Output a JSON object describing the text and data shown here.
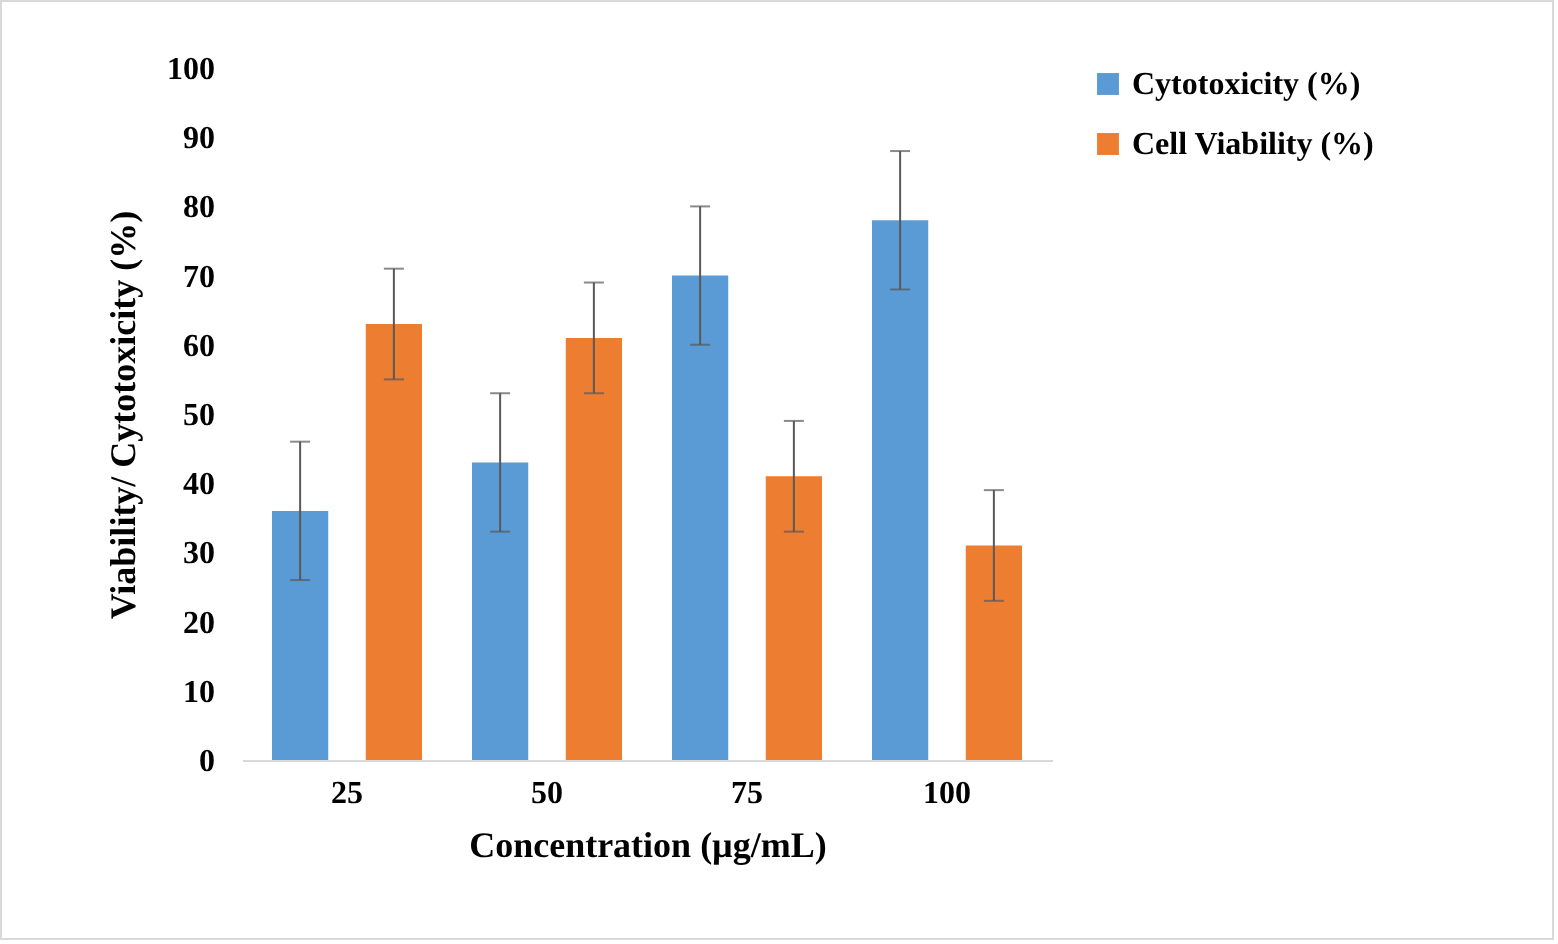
{
  "chart_data": {
    "type": "bar",
    "xlabel": "Concentration (µg/mL)",
    "ylabel": "Viability/ Cytotoxicity (%)",
    "categories": [
      "25",
      "50",
      "75",
      "100"
    ],
    "series": [
      {
        "name": "Cytotoxicity (%)",
        "color": "#5b9bd5",
        "values": [
          36,
          43,
          70,
          78
        ],
        "errors": [
          10,
          10,
          10,
          10
        ]
      },
      {
        "name": "Cell Viability (%)",
        "color": "#ed7d31",
        "values": [
          63,
          61,
          41,
          31
        ],
        "errors": [
          8,
          8,
          8,
          8
        ]
      }
    ],
    "ylim": [
      0,
      100
    ],
    "yticks": [
      0,
      10,
      20,
      30,
      40,
      50,
      60,
      70,
      80,
      90,
      100
    ],
    "grid": false,
    "legend": "right"
  }
}
